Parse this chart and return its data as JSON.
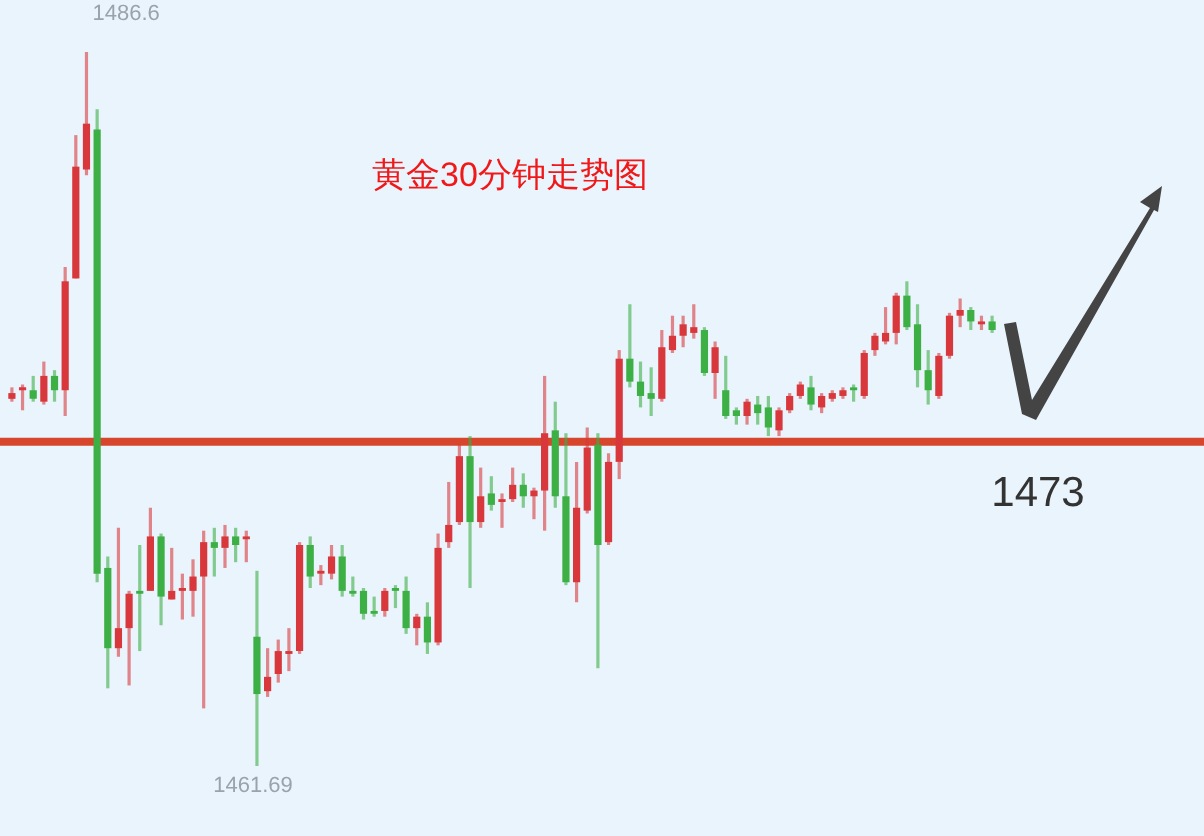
{
  "chart_data": {
    "type": "candlestick",
    "title": "黄金30分钟走势图",
    "categories": [
      null,
      null,
      null,
      null,
      null,
      null,
      null,
      null,
      null,
      null,
      null,
      null,
      null,
      null,
      null,
      null,
      null,
      null,
      null,
      null,
      null,
      null,
      null,
      null,
      null,
      null,
      null,
      null,
      null,
      null,
      null,
      null,
      null,
      null,
      null,
      null,
      null,
      null,
      null,
      null,
      null,
      null,
      null,
      null,
      null,
      null,
      null,
      null,
      null,
      null,
      null,
      null,
      null,
      null,
      null,
      null,
      null,
      null,
      null,
      null,
      null,
      null,
      null,
      null,
      null,
      null,
      null,
      null,
      null,
      null,
      null,
      null,
      null,
      null,
      null,
      null,
      null,
      null,
      null,
      null,
      null,
      null,
      null,
      null,
      null,
      null,
      null,
      null,
      null,
      null,
      null,
      null,
      null
    ],
    "ohlc": [
      [
        1474.5,
        1474.9,
        1474.4,
        1474.7
      ],
      [
        1474.8,
        1475.0,
        1474.1,
        1474.9
      ],
      [
        1474.8,
        1475.3,
        1474.4,
        1474.5
      ],
      [
        1474.4,
        1475.8,
        1474.3,
        1475.3
      ],
      [
        1475.3,
        1475.5,
        1474.4,
        1474.8
      ],
      [
        1474.8,
        1479.1,
        1473.9,
        1478.6
      ],
      [
        1478.7,
        1483.7,
        1478.7,
        1482.6
      ],
      [
        1482.5,
        1486.6,
        1482.3,
        1484.1
      ],
      [
        1483.9,
        1484.6,
        1468.1,
        1468.4
      ],
      [
        1468.6,
        1469.0,
        1464.4,
        1465.8
      ],
      [
        1465.8,
        1470.0,
        1465.5,
        1466.5
      ],
      [
        1466.5,
        1467.8,
        1464.5,
        1467.7
      ],
      [
        1467.8,
        1469.4,
        1465.7,
        1467.7
      ],
      [
        1467.8,
        1470.7,
        1467.8,
        1469.7
      ],
      [
        1469.7,
        1469.8,
        1466.6,
        1467.6
      ],
      [
        1467.5,
        1469.3,
        1467.5,
        1467.8
      ],
      [
        1467.8,
        1468.4,
        1466.8,
        1467.9
      ],
      [
        1467.8,
        1468.9,
        1466.9,
        1468.3
      ],
      [
        1468.3,
        1469.9,
        1463.7,
        1469.5
      ],
      [
        1469.5,
        1470.0,
        1468.3,
        1469.3
      ],
      [
        1469.3,
        1470.1,
        1468.6,
        1469.7
      ],
      [
        1469.7,
        1470.0,
        1468.8,
        1469.4
      ],
      [
        1469.6,
        1469.9,
        1468.8,
        1469.7
      ],
      [
        1466.2,
        1468.5,
        1461.69,
        1464.2
      ],
      [
        1464.3,
        1465.8,
        1464.1,
        1464.8
      ],
      [
        1464.9,
        1466.1,
        1464.6,
        1465.7
      ],
      [
        1465.6,
        1466.5,
        1465.0,
        1465.7
      ],
      [
        1465.7,
        1469.5,
        1465.6,
        1469.4
      ],
      [
        1469.4,
        1469.7,
        1467.9,
        1468.3
      ],
      [
        1468.4,
        1468.7,
        1468.0,
        1468.5
      ],
      [
        1468.4,
        1469.4,
        1468.2,
        1469.0
      ],
      [
        1469.0,
        1469.4,
        1467.6,
        1467.8
      ],
      [
        1467.8,
        1468.3,
        1467.6,
        1467.7
      ],
      [
        1467.8,
        1467.9,
        1466.8,
        1467.0
      ],
      [
        1467.1,
        1467.6,
        1466.9,
        1467.0
      ],
      [
        1467.1,
        1467.9,
        1466.9,
        1467.8
      ],
      [
        1467.9,
        1468.0,
        1467.2,
        1467.8
      ],
      [
        1467.8,
        1468.3,
        1466.3,
        1466.5
      ],
      [
        1466.5,
        1467.0,
        1465.9,
        1466.9
      ],
      [
        1466.9,
        1467.4,
        1465.6,
        1466.0
      ],
      [
        1466.0,
        1469.8,
        1465.9,
        1469.3
      ],
      [
        1469.5,
        1471.6,
        1469.3,
        1470.1
      ],
      [
        1470.2,
        1472.9,
        1470.1,
        1472.5
      ],
      [
        1472.5,
        1473.2,
        1467.9,
        1470.2
      ],
      [
        1470.2,
        1472.1,
        1470.0,
        1471.1
      ],
      [
        1471.2,
        1471.8,
        1470.6,
        1470.8
      ],
      [
        1470.9,
        1471.2,
        1470.0,
        1471.0
      ],
      [
        1471.0,
        1472.1,
        1470.9,
        1471.5
      ],
      [
        1471.5,
        1471.9,
        1470.7,
        1471.1
      ],
      [
        1471.1,
        1471.4,
        1470.3,
        1471.3
      ],
      [
        1471.3,
        1475.3,
        1469.9,
        1473.3
      ],
      [
        1473.4,
        1474.4,
        1470.7,
        1471.1
      ],
      [
        1471.1,
        1473.3,
        1468.0,
        1468.1
      ],
      [
        1468.1,
        1472.3,
        1467.4,
        1470.7
      ],
      [
        1470.6,
        1473.5,
        1470.5,
        1472.8
      ],
      [
        1472.9,
        1473.3,
        1465.1,
        1469.4
      ],
      [
        1469.5,
        1472.6,
        1469.4,
        1472.3
      ],
      [
        1472.3,
        1476.2,
        1471.7,
        1475.9
      ],
      [
        1475.9,
        1477.8,
        1474.9,
        1475.1
      ],
      [
        1475.1,
        1475.8,
        1474.2,
        1474.6
      ],
      [
        1474.7,
        1475.6,
        1473.9,
        1474.5
      ],
      [
        1474.5,
        1476.9,
        1474.4,
        1476.3
      ],
      [
        1476.2,
        1477.4,
        1476.1,
        1476.7
      ],
      [
        1476.7,
        1477.4,
        1476.3,
        1477.1
      ],
      [
        1476.8,
        1477.8,
        1476.6,
        1477.0
      ],
      [
        1476.9,
        1477.0,
        1475.3,
        1475.4
      ],
      [
        1475.4,
        1476.5,
        1474.5,
        1476.3
      ],
      [
        1474.8,
        1476.0,
        1473.8,
        1473.9
      ],
      [
        1474.1,
        1474.2,
        1473.6,
        1473.9
      ],
      [
        1473.9,
        1474.5,
        1473.6,
        1474.4
      ],
      [
        1474.3,
        1474.6,
        1473.6,
        1474.0
      ],
      [
        1474.2,
        1474.6,
        1473.2,
        1473.5
      ],
      [
        1473.4,
        1474.2,
        1473.2,
        1474.1
      ],
      [
        1474.1,
        1474.7,
        1474.0,
        1474.6
      ],
      [
        1474.6,
        1475.1,
        1474.5,
        1475.0
      ],
      [
        1474.9,
        1475.3,
        1474.1,
        1474.3
      ],
      [
        1474.2,
        1474.7,
        1474.0,
        1474.6
      ],
      [
        1474.5,
        1474.8,
        1474.4,
        1474.7
      ],
      [
        1474.6,
        1474.9,
        1474.5,
        1474.8
      ],
      [
        1474.9,
        1475.0,
        1474.4,
        1474.8
      ],
      [
        1474.6,
        1476.2,
        1474.5,
        1476.1
      ],
      [
        1476.2,
        1476.8,
        1476.0,
        1476.7
      ],
      [
        1476.5,
        1477.7,
        1476.4,
        1476.8
      ],
      [
        1476.8,
        1478.2,
        1476.4,
        1478.1
      ],
      [
        1478.1,
        1478.6,
        1476.9,
        1477.0
      ],
      [
        1477.1,
        1477.8,
        1474.9,
        1475.5
      ],
      [
        1475.5,
        1476.2,
        1474.3,
        1474.8
      ],
      [
        1474.6,
        1476.1,
        1474.5,
        1476.0
      ],
      [
        1476.0,
        1477.5,
        1475.9,
        1477.4
      ],
      [
        1477.4,
        1478.0,
        1477.0,
        1477.6
      ],
      [
        1477.6,
        1477.7,
        1476.9,
        1477.2
      ],
      [
        1477.1,
        1477.4,
        1476.9,
        1477.2
      ],
      [
        1477.2,
        1477.4,
        1476.8,
        1476.9
      ]
    ],
    "colors": [
      "#d8383c",
      "#d8383c",
      "#3caf45",
      "#d8383c",
      "#3caf45",
      "#d8383c",
      "#d8383c",
      "#d8383c",
      "#3caf45",
      "#3caf45",
      "#d8383c",
      "#d8383c",
      "#3caf45",
      "#d8383c",
      "#3caf45",
      "#d8383c",
      "#d8383c",
      "#d8383c",
      "#d8383c",
      "#3caf45",
      "#d8383c",
      "#3caf45",
      "#d8383c",
      "#3caf45",
      "#d8383c",
      "#d8383c",
      "#d8383c",
      "#d8383c",
      "#3caf45",
      "#d8383c",
      "#d8383c",
      "#3caf45",
      "#3caf45",
      "#3caf45",
      "#3caf45",
      "#d8383c",
      "#3caf45",
      "#3caf45",
      "#d8383c",
      "#3caf45",
      "#d8383c",
      "#d8383c",
      "#d8383c",
      "#3caf45",
      "#d8383c",
      "#3caf45",
      "#d8383c",
      "#d8383c",
      "#3caf45",
      "#d8383c",
      "#d8383c",
      "#3caf45",
      "#3caf45",
      "#d8383c",
      "#d8383c",
      "#3caf45",
      "#d8383c",
      "#d8383c",
      "#3caf45",
      "#3caf45",
      "#3caf45",
      "#d8383c",
      "#d8383c",
      "#d8383c",
      "#d8383c",
      "#3caf45",
      "#d8383c",
      "#3caf45",
      "#3caf45",
      "#d8383c",
      "#3caf45",
      "#3caf45",
      "#d8383c",
      "#d8383c",
      "#d8383c",
      "#3caf45",
      "#d8383c",
      "#d8383c",
      "#d8383c",
      "#3caf45",
      "#d8383c",
      "#d8383c",
      "#d8383c",
      "#d8383c",
      "#3caf45",
      "#3caf45",
      "#3caf45",
      "#d8383c",
      "#d8383c",
      "#d8383c",
      "#3caf45",
      "#d8383c",
      "#3caf45"
    ],
    "ref_lines": [
      {
        "axis": "y",
        "value": 1473,
        "label": "1473",
        "color": "#d6452c"
      }
    ],
    "annotations": [
      "1486.6",
      "1461.69"
    ]
  }
}
